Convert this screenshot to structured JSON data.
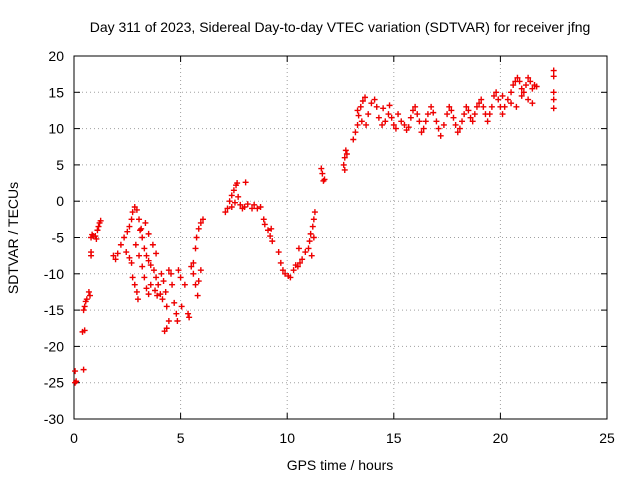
{
  "chart_data": {
    "type": "scatter",
    "title": "Day 311 of 2023, Sidereal Day-to-day VTEC variation (SDTVAR) for receiver jfng",
    "xlabel": "GPS time / hours",
    "ylabel": "SDTVAR / TECUs",
    "xlim": [
      0,
      25
    ],
    "ylim": [
      -30,
      20
    ],
    "xticks": [
      0,
      5,
      10,
      15,
      20,
      25
    ],
    "yticks": [
      -30,
      -25,
      -20,
      -15,
      -10,
      -5,
      0,
      5,
      10,
      15,
      20
    ],
    "xtick_labels": [
      "0",
      "5",
      "10",
      "15",
      "20",
      "25"
    ],
    "ytick_labels": [
      "-30",
      "-25",
      "-20",
      "-15",
      "-10",
      "-5",
      "0",
      "5",
      "10",
      "15",
      "20"
    ],
    "grid": true,
    "marker": "plus",
    "color": "#ee0000",
    "series": [
      {
        "name": "SDTVAR",
        "points": [
          [
            0.05,
            -23.4
          ],
          [
            0.05,
            -25.0
          ],
          [
            0.1,
            -24.8
          ],
          [
            0.4,
            -18.0
          ],
          [
            0.5,
            -17.8
          ],
          [
            0.45,
            -15.0
          ],
          [
            0.5,
            -14.5
          ],
          [
            0.55,
            -13.8
          ],
          [
            0.6,
            -13.5
          ],
          [
            0.45,
            -23.2
          ],
          [
            0.7,
            -12.5
          ],
          [
            0.75,
            -13.0
          ],
          [
            0.8,
            -7.0
          ],
          [
            0.8,
            -7.5
          ],
          [
            0.8,
            -5.0
          ],
          [
            0.85,
            -4.6
          ],
          [
            0.9,
            -4.8
          ],
          [
            1.0,
            -4.8
          ],
          [
            1.05,
            -5.2
          ],
          [
            1.1,
            -4.0
          ],
          [
            1.15,
            -3.5
          ],
          [
            1.2,
            -3.0
          ],
          [
            1.25,
            -2.7
          ],
          [
            1.85,
            -7.5
          ],
          [
            1.95,
            -8.0
          ],
          [
            2.05,
            -7.2
          ],
          [
            2.2,
            -6.0
          ],
          [
            2.35,
            -5.0
          ],
          [
            2.5,
            -4.2
          ],
          [
            2.45,
            -7.0
          ],
          [
            2.6,
            -7.8
          ],
          [
            2.7,
            -8.5
          ],
          [
            2.75,
            -10.5
          ],
          [
            2.85,
            -11.5
          ],
          [
            2.95,
            -12.5
          ],
          [
            3.0,
            -13.5
          ],
          [
            2.6,
            -3.5
          ],
          [
            2.7,
            -2.5
          ],
          [
            2.75,
            -1.5
          ],
          [
            2.85,
            -0.8
          ],
          [
            2.95,
            -1.2
          ],
          [
            3.05,
            -2.5
          ],
          [
            3.15,
            -3.8
          ],
          [
            3.2,
            -5.0
          ],
          [
            3.3,
            -6.5
          ],
          [
            3.4,
            -7.5
          ],
          [
            3.5,
            -8.2
          ],
          [
            3.6,
            -8.8
          ],
          [
            3.75,
            -9.5
          ],
          [
            3.85,
            -10.5
          ],
          [
            3.95,
            -11.5
          ],
          [
            4.05,
            -12.8
          ],
          [
            4.15,
            -13.5
          ],
          [
            2.9,
            -6.0
          ],
          [
            3.05,
            -7.5
          ],
          [
            3.2,
            -9.0
          ],
          [
            3.3,
            -10.5
          ],
          [
            3.4,
            -12.0
          ],
          [
            3.5,
            -12.8
          ],
          [
            3.1,
            -4.0
          ],
          [
            3.35,
            -3.0
          ],
          [
            3.5,
            -4.5
          ],
          [
            3.7,
            -6.0
          ],
          [
            3.85,
            -7.2
          ],
          [
            3.6,
            -11.5
          ],
          [
            3.8,
            -12.3
          ],
          [
            3.9,
            -13.0
          ],
          [
            4.1,
            -10.0
          ],
          [
            4.2,
            -11.0
          ],
          [
            4.3,
            -12.5
          ],
          [
            4.35,
            -14.5
          ],
          [
            4.45,
            -16.5
          ],
          [
            4.35,
            -17.5
          ],
          [
            4.25,
            -17.9
          ],
          [
            4.45,
            -9.5
          ],
          [
            4.55,
            -10.0
          ],
          [
            4.6,
            -11.5
          ],
          [
            4.7,
            -14.0
          ],
          [
            4.8,
            -15.5
          ],
          [
            4.85,
            -16.5
          ],
          [
            4.9,
            -9.5
          ],
          [
            5.0,
            -10.5
          ],
          [
            5.05,
            -14.5
          ],
          [
            5.2,
            -11.5
          ],
          [
            5.35,
            -15.5
          ],
          [
            5.4,
            -16.0
          ],
          [
            5.5,
            -9.0
          ],
          [
            5.6,
            -10.0
          ],
          [
            5.7,
            -11.5
          ],
          [
            5.8,
            -13.0
          ],
          [
            5.85,
            -11.0
          ],
          [
            5.95,
            -9.5
          ],
          [
            5.6,
            -8.5
          ],
          [
            5.7,
            -6.5
          ],
          [
            5.75,
            -5.0
          ],
          [
            5.85,
            -3.8
          ],
          [
            5.95,
            -3.0
          ],
          [
            6.05,
            -2.5
          ],
          [
            7.1,
            -1.5
          ],
          [
            7.2,
            -1.0
          ],
          [
            7.3,
            0.0
          ],
          [
            7.4,
            0.8
          ],
          [
            7.5,
            1.5
          ],
          [
            7.6,
            2.2
          ],
          [
            7.65,
            2.5
          ],
          [
            7.4,
            -0.8
          ],
          [
            7.55,
            -0.2
          ],
          [
            7.7,
            0.6
          ],
          [
            7.8,
            -0.5
          ],
          [
            7.9,
            -1.0
          ],
          [
            8.0,
            -0.8
          ],
          [
            8.05,
            2.6
          ],
          [
            8.15,
            -0.4
          ],
          [
            8.35,
            -1.0
          ],
          [
            8.45,
            -0.5
          ],
          [
            8.6,
            -1.0
          ],
          [
            8.75,
            -0.8
          ],
          [
            8.9,
            -2.5
          ],
          [
            8.95,
            -3.2
          ],
          [
            9.1,
            -4.0
          ],
          [
            9.2,
            -4.8
          ],
          [
            9.3,
            -5.5
          ],
          [
            9.25,
            -3.8
          ],
          [
            9.6,
            -7.0
          ],
          [
            9.7,
            -8.5
          ],
          [
            9.8,
            -9.5
          ],
          [
            9.9,
            -10.0
          ],
          [
            10.05,
            -10.3
          ],
          [
            10.15,
            -10.5
          ],
          [
            10.3,
            -9.5
          ],
          [
            10.4,
            -8.8
          ],
          [
            10.5,
            -9.0
          ],
          [
            10.6,
            -8.5
          ],
          [
            10.7,
            -8.0
          ],
          [
            10.55,
            -6.5
          ],
          [
            10.85,
            -7.0
          ],
          [
            11.0,
            -6.5
          ],
          [
            11.05,
            -5.5
          ],
          [
            11.1,
            -4.5
          ],
          [
            11.2,
            -3.5
          ],
          [
            11.25,
            -2.5
          ],
          [
            11.3,
            -1.5
          ],
          [
            11.15,
            -7.5
          ],
          [
            11.25,
            -5.0
          ],
          [
            11.6,
            4.5
          ],
          [
            11.65,
            3.8
          ],
          [
            11.7,
            2.8
          ],
          [
            11.75,
            3.0
          ],
          [
            12.65,
            5.0
          ],
          [
            12.7,
            6.0
          ],
          [
            12.75,
            7.0
          ],
          [
            12.7,
            4.3
          ],
          [
            12.8,
            6.5
          ],
          [
            13.1,
            8.5
          ],
          [
            13.2,
            9.5
          ],
          [
            13.3,
            10.5
          ],
          [
            13.35,
            11.8
          ],
          [
            13.45,
            13.0
          ],
          [
            13.55,
            13.8
          ],
          [
            13.65,
            14.3
          ],
          [
            13.3,
            12.5
          ],
          [
            13.5,
            11.0
          ],
          [
            13.7,
            10.5
          ],
          [
            13.8,
            12.0
          ],
          [
            13.95,
            13.5
          ],
          [
            14.1,
            14.0
          ],
          [
            14.2,
            13.0
          ],
          [
            14.3,
            11.5
          ],
          [
            14.45,
            10.5
          ],
          [
            14.6,
            11.0
          ],
          [
            14.75,
            12.0
          ],
          [
            14.9,
            11.5
          ],
          [
            15.0,
            10.5
          ],
          [
            15.1,
            10.0
          ],
          [
            14.5,
            12.8
          ],
          [
            14.8,
            13.2
          ],
          [
            15.2,
            12.0
          ],
          [
            15.35,
            11.0
          ],
          [
            15.5,
            10.5
          ],
          [
            15.6,
            9.8
          ],
          [
            15.7,
            10.2
          ],
          [
            15.8,
            11.5
          ],
          [
            15.9,
            12.5
          ],
          [
            16.0,
            13.0
          ],
          [
            16.1,
            12.0
          ],
          [
            16.2,
            11.0
          ],
          [
            16.3,
            9.5
          ],
          [
            16.4,
            10.0
          ],
          [
            16.5,
            11.0
          ],
          [
            16.6,
            12.0
          ],
          [
            16.75,
            13.0
          ],
          [
            16.85,
            12.2
          ],
          [
            17.0,
            11.0
          ],
          [
            17.1,
            10.0
          ],
          [
            17.2,
            9.0
          ],
          [
            17.35,
            10.5
          ],
          [
            17.5,
            12.0
          ],
          [
            17.6,
            13.0
          ],
          [
            17.7,
            12.5
          ],
          [
            17.8,
            11.5
          ],
          [
            17.9,
            10.5
          ],
          [
            18.0,
            9.5
          ],
          [
            18.1,
            10.0
          ],
          [
            18.2,
            11.0
          ],
          [
            18.3,
            12.0
          ],
          [
            18.4,
            13.0
          ],
          [
            18.5,
            12.5
          ],
          [
            18.6,
            11.5
          ],
          [
            18.7,
            11.0
          ],
          [
            18.8,
            12.0
          ],
          [
            18.9,
            13.0
          ],
          [
            19.0,
            13.5
          ],
          [
            19.1,
            14.0
          ],
          [
            19.2,
            13.0
          ],
          [
            19.3,
            12.0
          ],
          [
            19.4,
            11.0
          ],
          [
            19.5,
            12.0
          ],
          [
            19.6,
            13.0
          ],
          [
            19.7,
            14.5
          ],
          [
            19.8,
            15.0
          ],
          [
            19.9,
            14.0
          ],
          [
            20.0,
            13.0
          ],
          [
            20.1,
            12.0
          ],
          [
            20.2,
            13.0
          ],
          [
            20.35,
            14.0
          ],
          [
            20.5,
            15.0
          ],
          [
            20.6,
            16.0
          ],
          [
            20.7,
            16.5
          ],
          [
            20.8,
            17.0
          ],
          [
            20.9,
            16.5
          ],
          [
            21.0,
            15.5
          ],
          [
            21.1,
            15.0
          ],
          [
            21.2,
            16.0
          ],
          [
            21.3,
            17.0
          ],
          [
            21.4,
            16.5
          ],
          [
            21.5,
            15.5
          ],
          [
            21.6,
            16.0
          ],
          [
            21.7,
            15.8
          ],
          [
            21.0,
            14.5
          ],
          [
            20.75,
            13.0
          ],
          [
            20.5,
            13.5
          ],
          [
            21.3,
            14.0
          ],
          [
            21.5,
            13.5
          ],
          [
            20.1,
            14.5
          ],
          [
            22.5,
            18.0
          ],
          [
            22.5,
            17.2
          ],
          [
            22.5,
            15.0
          ],
          [
            22.5,
            14.0
          ],
          [
            22.5,
            12.8
          ]
        ]
      }
    ]
  }
}
